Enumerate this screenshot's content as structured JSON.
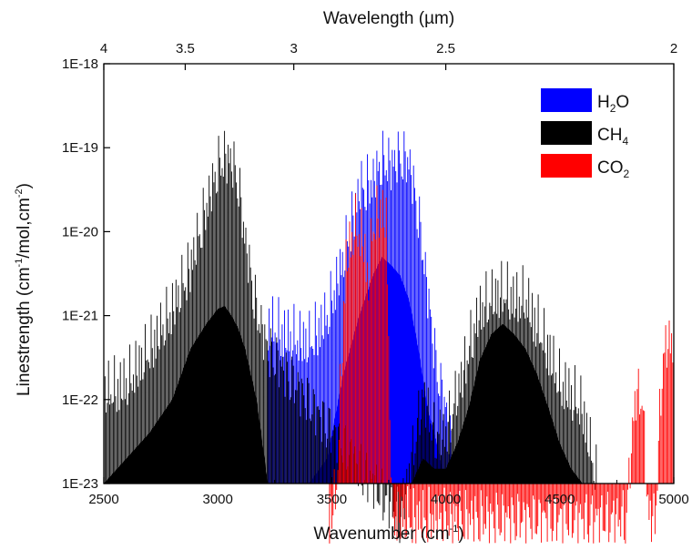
{
  "chart_data": {
    "type": "line",
    "title": "",
    "xlabel": "Wavenumber (cm-1)",
    "x2label": "Wavelength (µm)",
    "ylabel": "Linestrength (cm-1/mol,cm-2)",
    "xlim": [
      2500,
      5000
    ],
    "ylim": [
      1e-23,
      1e-18
    ],
    "yscale": "log",
    "x_ticks": [
      2500,
      3000,
      3500,
      4000,
      4500,
      5000
    ],
    "x_tick_labels": [
      "2500",
      "3000",
      "3500",
      "4000",
      "4500",
      "5000"
    ],
    "x2_ticks": [
      4,
      3.5,
      3,
      2.5,
      2
    ],
    "x2_tick_labels": [
      "4",
      "3.5",
      "3",
      "2.5",
      "2"
    ],
    "y_ticks": [
      1e-23,
      1e-22,
      1e-21,
      1e-20,
      1e-19,
      1e-18
    ],
    "y_tick_labels": [
      "1E-23",
      "1E-22",
      "1E-21",
      "1E-20",
      "1E-19",
      "1E-18"
    ],
    "grid": false,
    "legend_position": "top-right",
    "series": [
      {
        "name": "H2O",
        "color": "#0000ff",
        "x": [
          3220,
          3300,
          3400,
          3480,
          3550,
          3620,
          3680,
          3720,
          3760,
          3800,
          3840,
          3880,
          3920,
          3960,
          4000,
          4060
        ],
        "peak": [
          2e-21,
          1.5e-21,
          1.2e-21,
          2.5e-21,
          1.2e-20,
          8e-20,
          1e-19,
          1.8e-19,
          1.6e-19,
          2e-19,
          1.7e-19,
          4e-20,
          5e-21,
          6e-22,
          2e-22,
          2e-23
        ],
        "base": [
          1e-23,
          1e-23,
          1e-23,
          2e-23,
          2e-22,
          1e-21,
          3e-21,
          5e-21,
          4e-21,
          3e-21,
          1.5e-21,
          4e-22,
          8e-23,
          3e-23,
          1e-23,
          1e-23
        ]
      },
      {
        "name": "CH4",
        "color": "#000000",
        "x": [
          2500,
          2600,
          2700,
          2800,
          2880,
          2950,
          3000,
          3030,
          3060,
          3090,
          3120,
          3170,
          3220,
          3800,
          3850,
          3900,
          3950,
          4000,
          4050,
          4100,
          4150,
          4200,
          4250,
          4300,
          4350,
          4400,
          4450,
          4500,
          4550,
          4600,
          4660
        ],
        "peak": [
          3e-22,
          4e-22,
          1e-21,
          3e-21,
          1e-20,
          5e-20,
          1.5e-19,
          2e-19,
          1.8e-19,
          1e-19,
          2e-20,
          3e-21,
          1e-21,
          1e-23,
          5e-23,
          3e-22,
          1e-22,
          1e-22,
          3e-22,
          1e-21,
          3e-21,
          4e-21,
          5e-21,
          4e-21,
          4e-21,
          2e-21,
          1e-21,
          4e-22,
          3e-22,
          2e-22,
          3e-23
        ],
        "base": [
          1e-23,
          2e-23,
          4e-23,
          1e-22,
          4e-22,
          8e-22,
          1.2e-21,
          1.3e-21,
          1e-21,
          7e-22,
          4e-22,
          1e-22,
          1e-23,
          1e-23,
          1e-23,
          2e-23,
          1.5e-23,
          1.5e-23,
          3e-23,
          8e-23,
          3e-22,
          6e-22,
          8e-22,
          6e-22,
          4e-22,
          2e-22,
          8e-23,
          3e-23,
          1.5e-23,
          1e-23,
          1e-23
        ]
      },
      {
        "name": "CO2",
        "color": "#ff0000",
        "x": [
          3490,
          3520,
          3560,
          3600,
          3640,
          3660,
          3680,
          3720,
          3740,
          3765,
          4790,
          4800,
          4830,
          4860,
          4890,
          4920,
          4950,
          4980,
          5000
        ],
        "peak": [
          1e-23,
          2e-23,
          1e-20,
          3e-20,
          2e-20,
          6e-21,
          3e-20,
          5e-20,
          3e-20,
          1e-23,
          1e-23,
          2e-23,
          2.7e-22,
          3e-22,
          1e-23,
          1e-23,
          8e-22,
          1.3e-21,
          1.3e-21
        ],
        "base": [
          1e-23,
          1e-23,
          1e-23,
          1e-23,
          1e-23,
          1e-23,
          1e-23,
          1e-23,
          1e-23,
          1e-23,
          1e-23,
          1e-23,
          1e-23,
          1e-23,
          1e-23,
          1e-23,
          1e-23,
          1e-23,
          1e-23
        ]
      }
    ],
    "legend": {
      "entries": [
        {
          "label": "H",
          "sub": "2",
          "tail": "O",
          "color": "#0000ff"
        },
        {
          "label": "CH",
          "sub": "4",
          "tail": "",
          "color": "#000000"
        },
        {
          "label": "CO",
          "sub": "2",
          "tail": "",
          "color": "#ff0000"
        }
      ]
    }
  }
}
